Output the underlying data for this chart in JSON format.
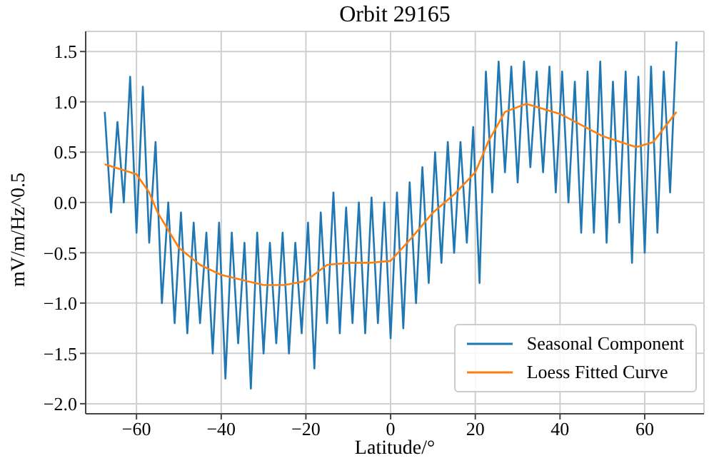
{
  "chart_data": {
    "type": "line",
    "title": "Orbit 29165",
    "xlabel": "Latitude/°",
    "ylabel": "mV/m/Hz^0.5",
    "xlim": [
      -72,
      74
    ],
    "xticks": [
      {
        "value": -60,
        "label": "−60"
      },
      {
        "value": -40,
        "label": "−40"
      },
      {
        "value": -20,
        "label": "−20"
      },
      0,
      20,
      40,
      60
    ],
    "ylim": [
      -2.1,
      1.7
    ],
    "yticks": [
      {
        "value": -2,
        "label": "−2.0"
      },
      {
        "value": -1.5,
        "label": "−1.5"
      },
      {
        "value": -1,
        "label": "−1.0"
      },
      {
        "value": -0.5,
        "label": "−0.5"
      },
      {
        "value": 0,
        "label": "0.0"
      },
      {
        "value": 0.5,
        "label": "0.5"
      },
      {
        "value": 1,
        "label": "1.0"
      },
      {
        "value": 1.5,
        "label": "1.5"
      }
    ],
    "grid": true,
    "legend": "bottom right",
    "series": [
      {
        "name": "Seasonal Component",
        "color": "#1f77b4",
        "x": [
          -67.5,
          -66,
          -64.5,
          -63,
          -61.5,
          -60,
          -58.5,
          -57,
          -55.5,
          -54,
          -52.5,
          -51,
          -49.5,
          -48,
          -46.5,
          -45,
          -43.5,
          -42,
          -40.5,
          -39,
          -37.5,
          -36,
          -34.5,
          -33,
          -31.5,
          -30,
          -28.5,
          -27,
          -25.5,
          -24,
          -22.5,
          -21,
          -19.5,
          -18,
          -16.5,
          -15,
          -13.5,
          -12,
          -10.5,
          -9,
          -7.5,
          -6,
          -4.5,
          -3,
          -1.5,
          0,
          1.5,
          3,
          4.5,
          6,
          7.5,
          9,
          10.5,
          12,
          13.5,
          15,
          16.5,
          18,
          19.5,
          21,
          22.5,
          24,
          25.5,
          27,
          28.5,
          30,
          31.5,
          33,
          34.5,
          36,
          37.5,
          39,
          40.5,
          42,
          43.5,
          45,
          46.5,
          48,
          49.5,
          51,
          52.5,
          54,
          55.5,
          57,
          58.5,
          60,
          61.5,
          63,
          64.5,
          66,
          67.5
        ],
        "values": [
          0.9,
          -0.1,
          0.8,
          0.0,
          1.25,
          -0.3,
          1.15,
          -0.4,
          0.6,
          -1.0,
          0.0,
          -1.2,
          -0.1,
          -1.3,
          -0.2,
          -1.2,
          -0.3,
          -1.5,
          -0.2,
          -1.75,
          -0.3,
          -1.4,
          -0.4,
          -1.85,
          -0.3,
          -1.5,
          -0.4,
          -1.4,
          -0.3,
          -1.5,
          -0.4,
          -1.3,
          -0.2,
          -1.65,
          -0.1,
          -1.2,
          0.1,
          -1.3,
          -0.05,
          -1.2,
          0.0,
          -1.3,
          0.05,
          -1.2,
          0.0,
          -1.35,
          0.1,
          -1.25,
          0.2,
          -1.0,
          0.35,
          -0.8,
          0.5,
          -0.6,
          0.6,
          -0.5,
          0.6,
          -0.4,
          0.75,
          -0.8,
          1.3,
          0.1,
          1.4,
          0.3,
          1.35,
          0.2,
          1.4,
          0.35,
          1.3,
          0.3,
          1.35,
          0.1,
          1.3,
          0.0,
          1.2,
          -0.3,
          1.3,
          -0.3,
          1.4,
          -0.4,
          1.2,
          -0.2,
          1.3,
          -0.6,
          1.25,
          -0.5,
          1.35,
          -0.3,
          1.3,
          0.1,
          1.6
        ]
      },
      {
        "name": "Loess Fitted Curve",
        "color": "#ff7f0e",
        "x": [
          -67.5,
          -60,
          -57,
          -55,
          -50,
          -45,
          -40,
          -35,
          -30,
          -25,
          -20,
          -15,
          -10,
          -5,
          0,
          5,
          10,
          15,
          20,
          23,
          27,
          32,
          40,
          50,
          58,
          62,
          67.5
        ],
        "values": [
          0.38,
          0.28,
          0.1,
          -0.1,
          -0.45,
          -0.62,
          -0.72,
          -0.77,
          -0.82,
          -0.82,
          -0.78,
          -0.62,
          -0.6,
          -0.6,
          -0.58,
          -0.35,
          -0.1,
          0.08,
          0.3,
          0.6,
          0.9,
          0.98,
          0.88,
          0.66,
          0.55,
          0.6,
          0.9
        ]
      }
    ]
  }
}
